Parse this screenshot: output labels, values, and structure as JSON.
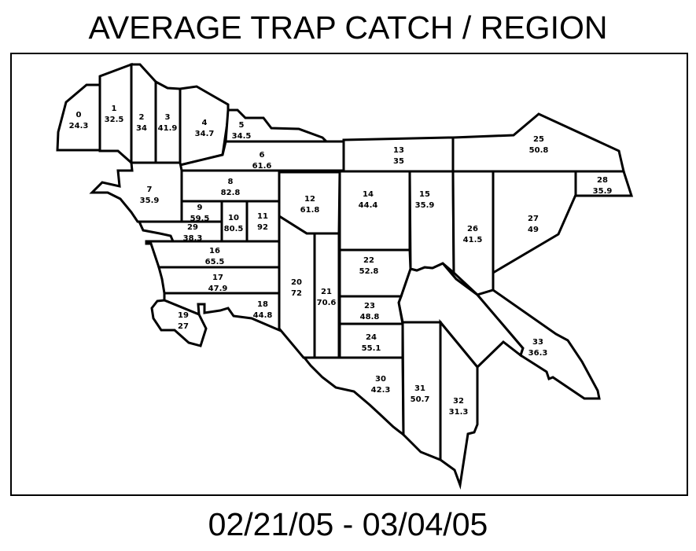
{
  "title": "AVERAGE TRAP CATCH / REGION",
  "date_range": "02/21/05 - 03/04/05",
  "map": {
    "outline_color": "#000000",
    "fill_color": "#ffffff",
    "regions": [
      {
        "id": "0",
        "value": "24.3"
      },
      {
        "id": "1",
        "value": "32.5"
      },
      {
        "id": "2",
        "value": "34"
      },
      {
        "id": "3",
        "value": "41.9"
      },
      {
        "id": "4",
        "value": "34.7"
      },
      {
        "id": "5",
        "value": "34.5"
      },
      {
        "id": "6",
        "value": "61.6"
      },
      {
        "id": "7",
        "value": "35.9"
      },
      {
        "id": "8",
        "value": "82.8"
      },
      {
        "id": "9",
        "value": "59.5"
      },
      {
        "id": "10",
        "value": "80.5"
      },
      {
        "id": "11",
        "value": "92"
      },
      {
        "id": "12",
        "value": "61.8"
      },
      {
        "id": "13",
        "value": "35"
      },
      {
        "id": "14",
        "value": "44.4"
      },
      {
        "id": "15",
        "value": "35.9"
      },
      {
        "id": "16",
        "value": "65.5"
      },
      {
        "id": "17",
        "value": "47.9"
      },
      {
        "id": "18",
        "value": "44.8"
      },
      {
        "id": "19",
        "value": "27"
      },
      {
        "id": "20",
        "value": "72"
      },
      {
        "id": "21",
        "value": "70.6"
      },
      {
        "id": "22",
        "value": "52.8"
      },
      {
        "id": "23",
        "value": "48.8"
      },
      {
        "id": "24",
        "value": "55.1"
      },
      {
        "id": "25",
        "value": "50.8"
      },
      {
        "id": "26",
        "value": "41.5"
      },
      {
        "id": "27",
        "value": "49"
      },
      {
        "id": "28",
        "value": "35.9"
      },
      {
        "id": "29",
        "value": "38.3"
      },
      {
        "id": "30",
        "value": "42.3"
      },
      {
        "id": "31",
        "value": "50.7"
      },
      {
        "id": "32",
        "value": "31.3"
      },
      {
        "id": "33",
        "value": "36.3"
      }
    ]
  }
}
